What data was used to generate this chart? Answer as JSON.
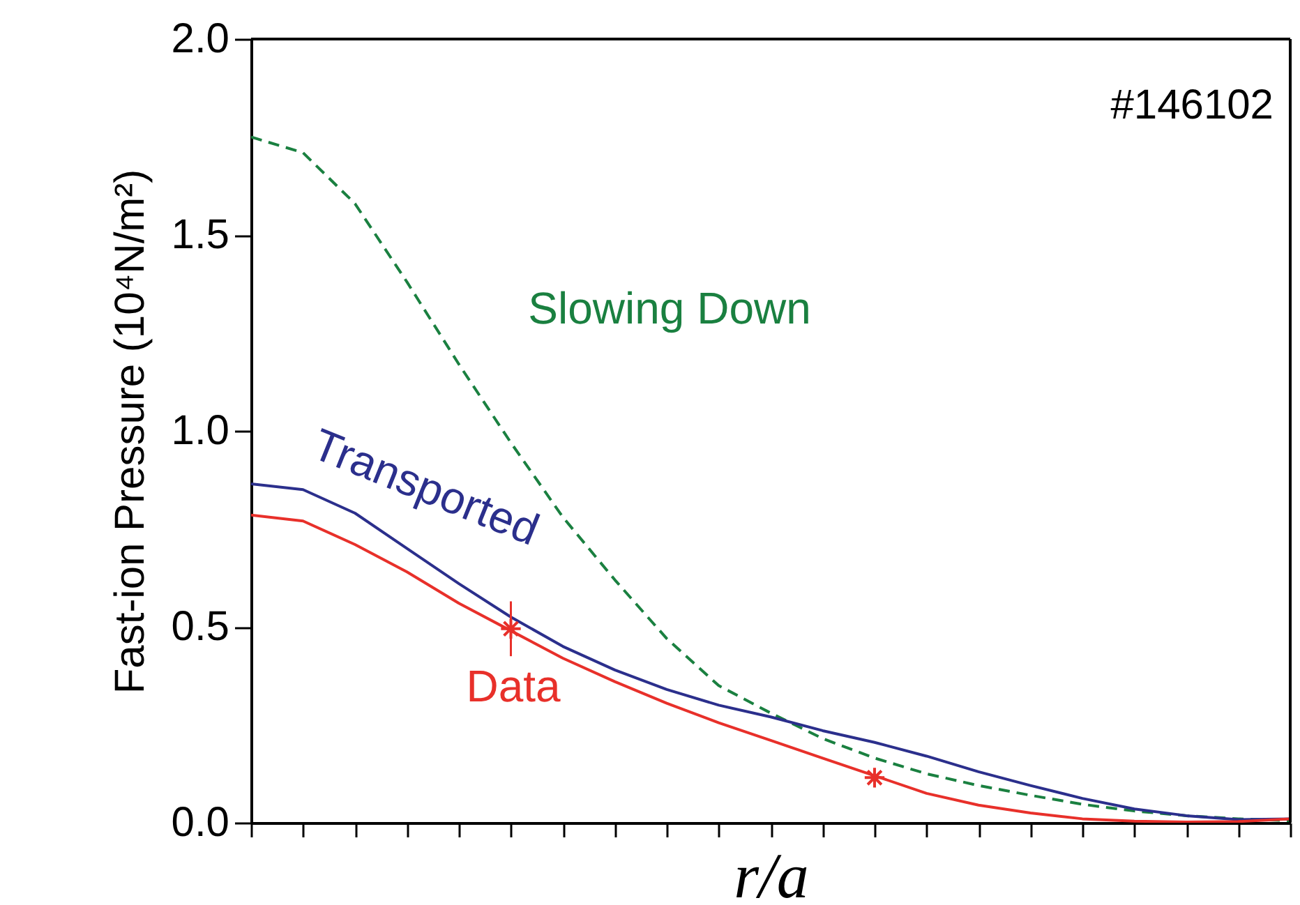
{
  "chart_data": {
    "type": "line",
    "xlabel": "r/a",
    "ylabel": "Fast-ion Pressure (10⁴N/m²)",
    "annotations": [
      "#146102"
    ],
    "categories": [
      null,
      null,
      null,
      null,
      null,
      null,
      null,
      null,
      null,
      null,
      null,
      null,
      null,
      null,
      null,
      null,
      null,
      null,
      null,
      null,
      null
    ],
    "ylim": [
      0,
      2.0
    ],
    "yticks": [
      {
        "value": 0,
        "label": "0.0"
      },
      {
        "value": 0.5,
        "label": "0.5"
      },
      {
        "value": 1,
        "label": "1.0"
      },
      {
        "value": 1.5,
        "label": "1.5"
      },
      {
        "value": 2,
        "label": "2.0"
      }
    ],
    "tick_labels": "y",
    "grid": false,
    "series": [
      {
        "name": "Slowing Down",
        "color": "#1a8040",
        "line_style": "dashed",
        "values": [
          1.75,
          1.71,
          1.58,
          1.38,
          1.17,
          0.97,
          0.78,
          0.62,
          0.47,
          0.35,
          0.28,
          0.215,
          0.165,
          0.125,
          0.095,
          0.07,
          0.047,
          0.03,
          0.018,
          0.01,
          0.005
        ]
      },
      {
        "name": "Transported",
        "color": "#2b2f8c",
        "line_style": "solid",
        "values": [
          0.865,
          0.85,
          0.79,
          0.7,
          0.61,
          0.525,
          0.45,
          0.39,
          0.34,
          0.3,
          0.27,
          0.235,
          0.205,
          0.17,
          0.13,
          0.095,
          0.062,
          0.035,
          0.018,
          0.008,
          0.01
        ]
      },
      {
        "name": "Data",
        "color": "#e8302a",
        "line_style": "solid",
        "values": [
          0.785,
          0.77,
          0.71,
          0.64,
          0.56,
          0.49,
          0.42,
          0.36,
          0.305,
          0.255,
          0.21,
          0.165,
          0.12,
          0.075,
          0.045,
          0.025,
          0.01,
          0.004,
          0.002,
          0.003,
          0.01
        ]
      },
      {
        "type": "scatter",
        "color": "#e8302a",
        "marker": "cross",
        "values": [
          null,
          null,
          null,
          null,
          null,
          0.495,
          null,
          null,
          null,
          null,
          null,
          null,
          0.115,
          null,
          null,
          null,
          null,
          null,
          null,
          null,
          null
        ],
        "errors": [
          null,
          null,
          null,
          null,
          null,
          0.07,
          null,
          null,
          null,
          null,
          null,
          null,
          null,
          null,
          null,
          null,
          null,
          null,
          null,
          null,
          null
        ]
      }
    ]
  }
}
